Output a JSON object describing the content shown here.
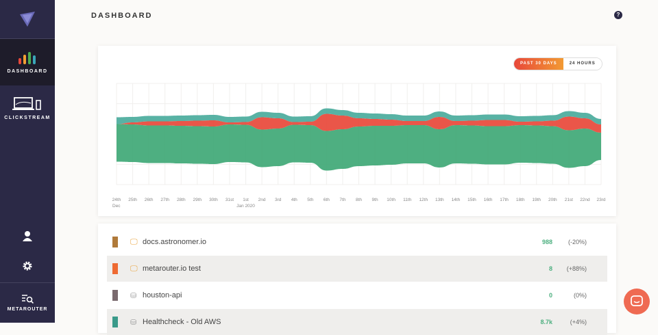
{
  "sidebar": {
    "brand": "METAROUTER",
    "items": [
      {
        "label": "DASHBOARD",
        "icon": "bar-chart-icon",
        "active": true
      },
      {
        "label": "CLICKSTREAM",
        "icon": "laptop-phone-icon"
      }
    ],
    "bottom_icons": [
      "user-icon",
      "gear-icon"
    ]
  },
  "header": {
    "title": "DASHBOARD",
    "help": "?"
  },
  "toggle": {
    "options": [
      "PAST 30 DAYS",
      "24 HOURS"
    ],
    "selected": "PAST 30 DAYS"
  },
  "chart_data": {
    "type": "area",
    "stacked": true,
    "baseline": "centered",
    "grid": true,
    "x": [
      "24th",
      "25th",
      "26th",
      "27th",
      "28th",
      "29th",
      "30th",
      "31st",
      "1st",
      "2nd",
      "3rd",
      "4th",
      "5th",
      "6th",
      "7th",
      "8th",
      "9th",
      "10th",
      "11th",
      "12th",
      "13th",
      "14th",
      "15th",
      "16th",
      "17th",
      "18th",
      "19th",
      "20th",
      "21st",
      "22nd",
      "23rd"
    ],
    "x_sublabels": {
      "24th": "Dec",
      "1st": "Jan 2020"
    },
    "series": [
      {
        "color": "#3fa876",
        "values": [
          55,
          55,
          55,
          55,
          55,
          55,
          55,
          55,
          55,
          55,
          55,
          55,
          55,
          58,
          58,
          58,
          58,
          57,
          56,
          56,
          56,
          56,
          56,
          56,
          56,
          55,
          55,
          55,
          55,
          55,
          40
        ]
      },
      {
        "color": "#e8483a",
        "values": [
          0,
          3,
          6,
          6,
          7,
          8,
          9,
          3,
          4,
          18,
          15,
          4,
          5,
          25,
          20,
          12,
          10,
          9,
          6,
          6,
          18,
          6,
          7,
          9,
          9,
          5,
          6,
          8,
          20,
          15,
          12
        ]
      },
      {
        "color": "#4aab9c",
        "values": [
          10,
          8,
          8,
          8,
          8,
          8,
          8,
          8,
          8,
          8,
          8,
          8,
          8,
          8,
          8,
          8,
          8,
          8,
          8,
          8,
          8,
          8,
          8,
          8,
          8,
          8,
          8,
          8,
          8,
          8,
          8
        ]
      }
    ]
  },
  "sources": [
    {
      "name": "docs.astronomer.io",
      "count": "988",
      "change": "(-20%)",
      "color": "#b07a3a",
      "icon": "monitor-icon"
    },
    {
      "name": "metarouter.io test",
      "count": "8",
      "change": "(+88%)",
      "color": "#ee6a32",
      "icon": "monitor-icon"
    },
    {
      "name": "houston-api",
      "count": "0",
      "change": "(0%)",
      "color": "#7a6a6e",
      "icon": "server-icon"
    },
    {
      "name": "Healthcheck - Old AWS",
      "count": "8.7k",
      "change": "(+4%)",
      "color": "#3a9a8a",
      "icon": "server-icon"
    }
  ]
}
